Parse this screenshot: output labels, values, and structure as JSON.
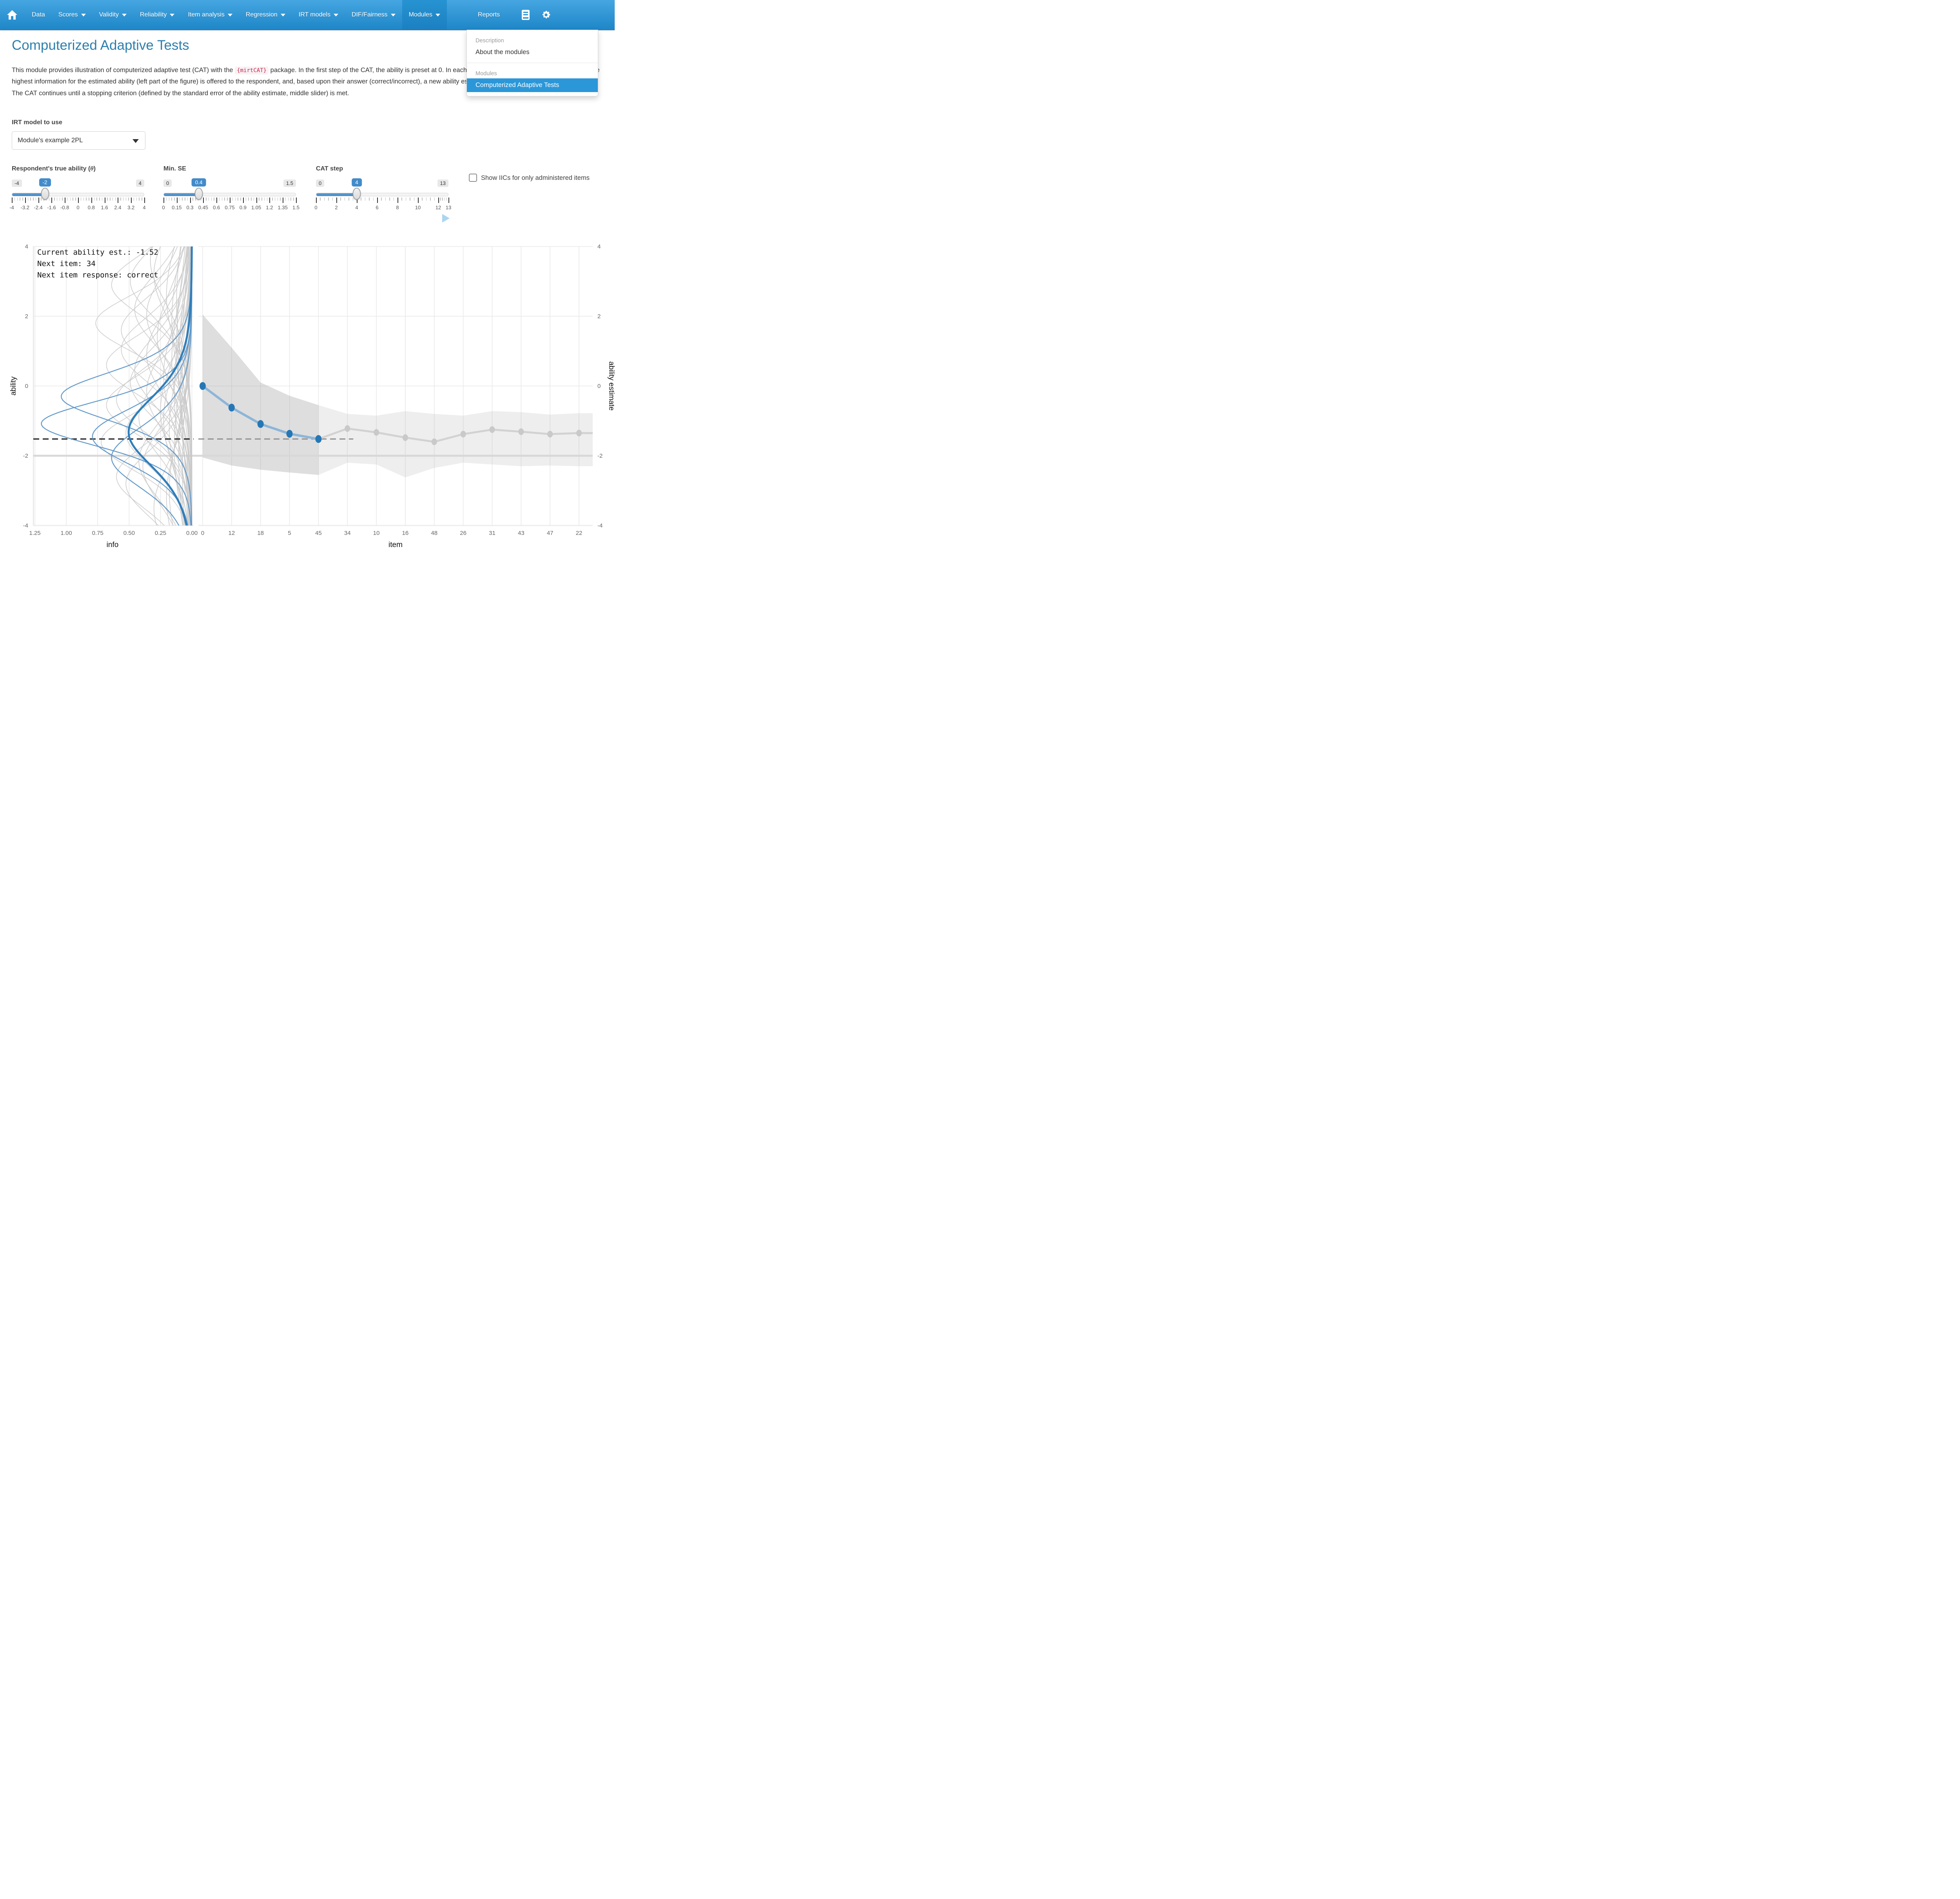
{
  "navbar": {
    "items": [
      {
        "label": "Data",
        "caret": false,
        "active": false
      },
      {
        "label": "Scores",
        "caret": true,
        "active": false
      },
      {
        "label": "Validity",
        "caret": true,
        "active": false
      },
      {
        "label": "Reliability",
        "caret": true,
        "active": false
      },
      {
        "label": "Item analysis",
        "caret": true,
        "active": false
      },
      {
        "label": "Regression",
        "caret": true,
        "active": false
      },
      {
        "label": "IRT models",
        "caret": true,
        "active": false
      },
      {
        "label": "DIF/Fairness",
        "caret": true,
        "active": false
      },
      {
        "label": "Modules",
        "caret": true,
        "active": true
      },
      {
        "label": "Reports",
        "caret": false,
        "active": false,
        "pushright": true
      }
    ],
    "icons": [
      "manual-icon",
      "gear-icon"
    ]
  },
  "dropdown": {
    "sections": [
      {
        "header": "Description",
        "items": [
          {
            "label": "About the modules",
            "active": false
          }
        ]
      },
      {
        "header": "Modules",
        "items": [
          {
            "label": "Computerized Adaptive Tests",
            "active": true
          }
        ]
      }
    ]
  },
  "page": {
    "title": "Computerized Adaptive Tests",
    "intro_before_code": "This module provides illustration of computerized adaptive test (CAT) with the ",
    "code": "{mirtCAT}",
    "intro_after_code": " package. In the first step of the CAT, the ability is preset at 0. In each step of the CAT (right slider), the item with the highest information for the estimated ability (left part of the figure) is offered to the respondent, and, based upon their answer (correct/incorrect), a new ability estimate is computed (right part of the figure). The CAT continues until a stopping criterion (defined by the standard error of the ability estimate, middle slider) is met."
  },
  "model_select": {
    "label": "IRT model to use",
    "value": "Module's example 2PL"
  },
  "sliders": [
    {
      "id": "true-ability",
      "label_prefix": "Respondent's true ability (",
      "label_symbol": "θ",
      "label_suffix": ")",
      "min": -4,
      "max": 4,
      "value": -2,
      "min_label": "-4",
      "max_label": "4",
      "value_label": "-2",
      "tick_values": [
        -4,
        -3.2,
        -2.4,
        -1.6,
        -0.8,
        0,
        0.8,
        1.6,
        2.4,
        3.2,
        4
      ],
      "tick_labels": [
        "-4",
        "-3.2",
        "-2.4",
        "-1.6",
        "-0.8",
        "0",
        "0.8",
        "1.6",
        "2.4",
        "3.2",
        "4"
      ]
    },
    {
      "id": "min-se",
      "label_prefix": "Min. SE",
      "label_symbol": "",
      "label_suffix": "",
      "min": 0,
      "max": 1.5,
      "value": 0.4,
      "min_label": "0",
      "max_label": "1.5",
      "value_label": "0.4",
      "tick_values": [
        0,
        0.15,
        0.3,
        0.45,
        0.6,
        0.75,
        0.9,
        1.05,
        1.2,
        1.35,
        1.5
      ],
      "tick_labels": [
        "0",
        "0.15",
        "0.3",
        "0.45",
        "0.6",
        "0.75",
        "0.9",
        "1.05",
        "1.2",
        "1.35",
        "1.5"
      ]
    },
    {
      "id": "cat-step",
      "label_prefix": "CAT step",
      "label_symbol": "",
      "label_suffix": "",
      "min": 0,
      "max": 13,
      "value": 4,
      "min_label": "0",
      "max_label": "13",
      "value_label": "4",
      "tick_values": [
        0,
        2,
        4,
        6,
        8,
        10,
        12,
        13
      ],
      "tick_labels": [
        "0",
        "2",
        "4",
        "6",
        "8",
        "10",
        "12",
        "13"
      ]
    }
  ],
  "checkbox": {
    "label": "Show IICs for only administered items",
    "checked": false
  },
  "chart_data": {
    "type": "line",
    "annotations": [
      "Current ability est.: -1.52",
      "Next item: 34",
      "Next item response: correct"
    ],
    "left_panel": {
      "xlabel": "info",
      "xlim": [
        1.27,
        -0.015
      ],
      "x_ticks": [
        1.25,
        1.0,
        0.75,
        0.5,
        0.25,
        0.0
      ],
      "x_tick_labels": [
        "1.25",
        "1.00",
        "0.75",
        "0.50",
        "0.25",
        "0.00"
      ],
      "ylabel": "ability",
      "ylim": [
        -4,
        4
      ],
      "y_ticks": [
        4,
        2,
        0,
        -2,
        -4
      ],
      "iic_model": "2PL item information I(theta)=a^2*p*(1-p)",
      "administered_iic": [
        {
          "a": 2.04,
          "b": -0.3
        },
        {
          "a": 2.19,
          "b": -1.08
        },
        {
          "a": 1.78,
          "b": -1.45
        },
        {
          "a": 1.6,
          "b": -2.05
        }
      ],
      "next_item_iic": {
        "a": 1.42,
        "b": -1.32
      },
      "other_iic": [
        [
          1.1,
          3.2
        ],
        [
          0.9,
          2.6
        ],
        [
          1.35,
          2.2
        ],
        [
          0.8,
          1.9
        ],
        [
          1.5,
          1.6
        ],
        [
          0.7,
          1.2
        ],
        [
          1.2,
          0.9
        ],
        [
          1.65,
          0.6
        ],
        [
          0.95,
          0.3
        ],
        [
          1.4,
          0.1
        ],
        [
          0.75,
          -0.2
        ],
        [
          1.55,
          -0.4
        ],
        [
          1.0,
          -0.7
        ],
        [
          1.3,
          -0.9
        ],
        [
          0.85,
          -1.2
        ],
        [
          1.7,
          -1.6
        ],
        [
          0.65,
          -2.0
        ],
        [
          1.25,
          -2.3
        ],
        [
          1.45,
          -2.8
        ],
        [
          0.9,
          -3.2
        ],
        [
          1.15,
          3.6
        ],
        [
          1.6,
          2.9
        ],
        [
          0.7,
          2.4
        ],
        [
          1.05,
          1.4
        ],
        [
          1.5,
          1.05
        ],
        [
          0.8,
          0.75
        ],
        [
          1.35,
          0.45
        ],
        [
          0.6,
          0.15
        ],
        [
          1.2,
          -0.15
        ],
        [
          1.65,
          -0.55
        ],
        [
          0.95,
          -0.95
        ],
        [
          1.45,
          -1.35
        ],
        [
          0.75,
          -1.75
        ],
        [
          1.3,
          -2.15
        ],
        [
          1.55,
          -2.6
        ],
        [
          0.85,
          -3.0
        ],
        [
          1.1,
          -3.5
        ],
        [
          1.4,
          3.0
        ],
        [
          0.65,
          0.5
        ],
        [
          1.75,
          1.8
        ],
        [
          1.2,
          2.05
        ],
        [
          0.55,
          -2.5
        ]
      ]
    },
    "right_panel": {
      "xlabel": "item",
      "categories": [
        "0",
        "12",
        "18",
        "5",
        "45",
        "34",
        "10",
        "16",
        "48",
        "26",
        "31",
        "43",
        "47",
        "22"
      ],
      "ylabel": "ability estimate",
      "ylim": [
        -4,
        4
      ],
      "y_ticks": [
        4,
        2,
        0,
        -2,
        -4
      ],
      "administered_estimates": [
        0,
        -0.62,
        -1.09,
        -1.37,
        -1.52
      ],
      "future_estimates": [
        -1.52,
        -1.22,
        -1.33,
        -1.48,
        -1.6,
        -1.38,
        -1.25,
        -1.31,
        -1.38,
        -1.35
      ],
      "administered_band": {
        "upper": [
          2.05,
          1.1,
          0.1,
          -0.28,
          -0.55
        ],
        "lower": [
          -2.05,
          -2.28,
          -2.4,
          -2.48,
          -2.55
        ]
      },
      "future_band": {
        "upper": [
          -0.55,
          -0.8,
          -0.85,
          -0.72,
          -0.8,
          -0.85,
          -0.72,
          -0.75,
          -0.82,
          -0.78
        ],
        "lower": [
          -2.55,
          -2.2,
          -2.25,
          -2.62,
          -2.35,
          -2.2,
          -2.25,
          -2.3,
          -2.28,
          -2.3
        ]
      },
      "true_ability": -2,
      "current_estimate": -1.52
    },
    "colors": {
      "dot_blue": "#2677b5",
      "line_blue": "#8db5d8",
      "dot_gray": "#c9c9c9",
      "line_gray": "#d2d2d2",
      "band_admin": "#999999",
      "band_future": "#ababab",
      "iic_gray": "#c9c9c9",
      "iic_blue": "#5d96c8",
      "iic_next": "#2f7ebb",
      "dash_left": "#1a1a1a",
      "dash_right": "#8f8f8f",
      "true_line": "#d8d8d8",
      "grid": "#e8e8e8",
      "tick_text": "#666666",
      "axis_title": "#111111"
    },
    "legend": "none",
    "grid": true
  }
}
